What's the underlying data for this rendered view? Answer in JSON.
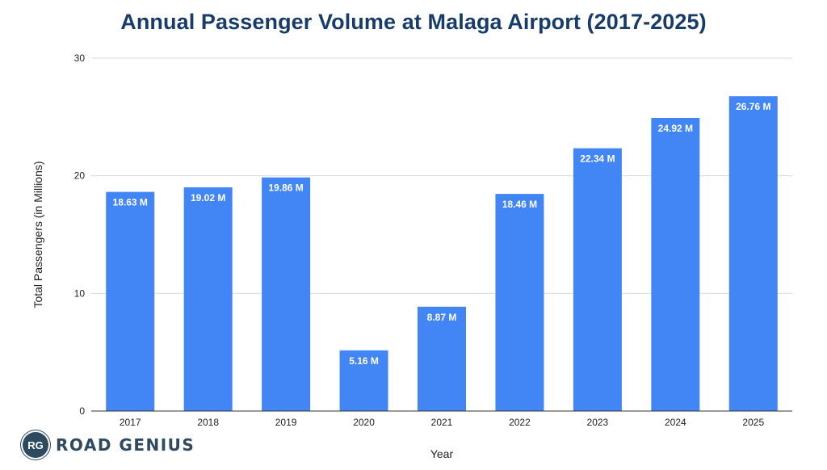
{
  "chart_data": {
    "type": "bar",
    "title": "Annual Passenger Volume at Malaga Airport (2017-2025)",
    "xlabel": "Year",
    "ylabel": "Total Passengers (in Millions)",
    "ylim": [
      0,
      30
    ],
    "yticks": [
      0,
      10,
      20,
      30
    ],
    "grid": true,
    "categories": [
      "2017",
      "2018",
      "2019",
      "2020",
      "2021",
      "2022",
      "2023",
      "2024",
      "2025"
    ],
    "values": [
      18.63,
      19.02,
      19.86,
      5.16,
      8.87,
      18.46,
      22.34,
      24.92,
      26.76
    ],
    "data_labels": [
      "18.63 M",
      "19.02 M",
      "19.86 M",
      "5.16 M",
      "8.87 M",
      "18.46 M",
      "22.34 M",
      "24.92 M",
      "26.76 M"
    ],
    "colors": {
      "bar": "#4285f4",
      "grid": "#d9d9d9",
      "axis": "#333333",
      "title": "#173c6b"
    }
  },
  "logo": {
    "badge": "RG",
    "text": "ROAD GENIUS"
  }
}
